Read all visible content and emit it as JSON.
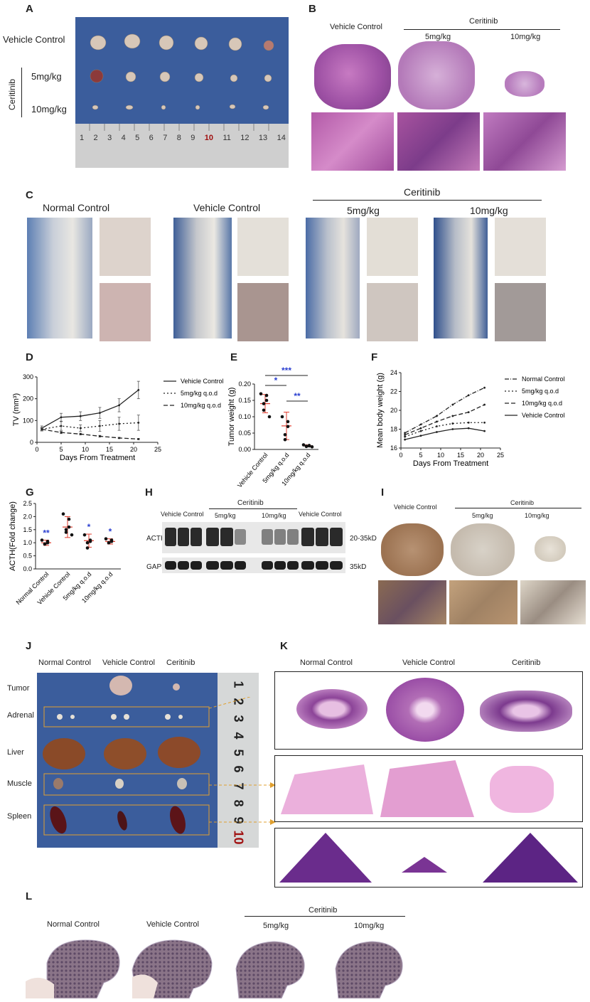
{
  "panels": {
    "A": {
      "label": "A",
      "rows": [
        "Vehicle Control",
        "5mg/kg",
        "10mg/kg"
      ],
      "group": "Ceritinib",
      "ruler": [
        "1",
        "2",
        "3",
        "4",
        "5",
        "6",
        "7",
        "8",
        "9",
        "10",
        "11",
        "12",
        "13",
        "14"
      ]
    },
    "B": {
      "label": "B",
      "vehicle": "Vehicle Control",
      "group": "Ceritinib",
      "doses": [
        "5mg/kg",
        "10mg/kg"
      ]
    },
    "C": {
      "label": "C",
      "titles": [
        "Normal Control",
        "Vehicle Control",
        "5mg/kg",
        "10mg/kg"
      ],
      "group": "Ceritinib"
    },
    "D": {
      "label": "D",
      "ylabel": "TV (mm³)",
      "xlabel": "Days From Treatment",
      "legend": [
        "Vehicle Control",
        "5mg/kg q.o.d",
        "10mg/kg q.o.d"
      ]
    },
    "E": {
      "label": "E",
      "ylabel": "Tumor weight (g)",
      "categories": [
        "Vehicle Control",
        "5mg/kg q.o.d",
        "10mg/kg q.o.d"
      ],
      "sig": [
        "***",
        "*",
        "**"
      ]
    },
    "F": {
      "label": "F",
      "ylabel": "Mean body weight (g)",
      "xlabel": "Days From Treatment",
      "legend": [
        "Normal Control",
        "5mg/kg q.o.d",
        "10mg/kg q.o.d",
        "Vehicle Control"
      ]
    },
    "G": {
      "label": "G",
      "ylabel": "ACTH(Fold change)",
      "categories": [
        "Normal Control",
        "Vehicle Control",
        "5mg/kg q.o.d",
        "10mg/kg q.o.d"
      ],
      "sig": [
        "**",
        "",
        "*",
        "*"
      ]
    },
    "H": {
      "label": "H",
      "group": "Ceritinib",
      "lanes": [
        "Vehicle Control",
        "5mg/kg",
        "10mg/kg",
        "Vehicle Control"
      ],
      "rows": [
        "ACTH",
        "GAPDH"
      ],
      "sizes": [
        "20-35kD",
        "35kD"
      ]
    },
    "I": {
      "label": "I",
      "vehicle": "Vehicle Control",
      "group": "Ceritinib",
      "doses": [
        "5mg/kg",
        "10mg/kg"
      ]
    },
    "J": {
      "label": "J",
      "cols": [
        "Normal Control",
        "Vehicle Control",
        "Ceritinib"
      ],
      "rows": [
        "Tumor",
        "Adrenal",
        "Liver",
        "Muscle",
        "Spleen"
      ],
      "ruler": [
        "1",
        "2",
        "3",
        "4",
        "5",
        "6",
        "7",
        "8",
        "9",
        "10"
      ]
    },
    "K": {
      "label": "K",
      "cols": [
        "Normal Control",
        "Vehicle Control",
        "Ceritinib"
      ]
    },
    "L": {
      "label": "L",
      "titles": [
        "Normal Control",
        "Vehicle Control",
        "5mg/kg",
        "10mg/kg"
      ],
      "group": "Ceritinib"
    }
  },
  "chart_data": [
    {
      "panel": "D",
      "type": "line",
      "x": [
        1,
        5,
        9,
        13,
        17,
        21
      ],
      "series": [
        {
          "name": "Vehicle Control",
          "values": [
            65,
            115,
            120,
            135,
            170,
            240
          ],
          "err": [
            10,
            18,
            20,
            25,
            30,
            40
          ]
        },
        {
          "name": "5mg/kg q.o.d",
          "values": [
            60,
            75,
            65,
            75,
            85,
            90
          ],
          "err": [
            8,
            20,
            15,
            25,
            30,
            35
          ]
        },
        {
          "name": "10mg/kg q.o.d",
          "values": [
            60,
            45,
            38,
            28,
            20,
            15
          ],
          "err": [
            5,
            5,
            4,
            4,
            3,
            3
          ]
        }
      ],
      "xlim": [
        0,
        25
      ],
      "ylim": [
        0,
        300
      ],
      "xticks": [
        0,
        5,
        10,
        15,
        20,
        25
      ],
      "yticks": [
        0,
        100,
        200,
        300
      ],
      "xlabel": "Days From Treatment",
      "ylabel": "TV (mm³)"
    },
    {
      "panel": "E",
      "type": "scatter",
      "categories": [
        "Vehicle Control",
        "5mg/kg q.o.d",
        "10mg/kg q.o.d"
      ],
      "means": [
        0.14,
        0.072,
        0.011
      ],
      "sd": [
        0.028,
        0.042,
        0.003
      ],
      "points": [
        [
          0.17,
          0.165,
          0.15,
          0.14,
          0.12,
          0.1
        ],
        [
          0.1,
          0.085,
          0.07,
          0.045,
          0.03
        ],
        [
          0.014,
          0.012,
          0.011,
          0.01,
          0.009,
          0.008
        ]
      ],
      "ylim": [
        0,
        0.2
      ],
      "yticks": [
        0.0,
        0.05,
        0.1,
        0.15,
        0.2
      ],
      "ylabel": "Tumor weight (g)"
    },
    {
      "panel": "F",
      "type": "line",
      "x": [
        1,
        5,
        9,
        13,
        17,
        21
      ],
      "series": [
        {
          "name": "Normal Control",
          "values": [
            17.6,
            18.5,
            19.4,
            20.6,
            21.6,
            22.4
          ]
        },
        {
          "name": "5mg/kg q.o.d",
          "values": [
            17.2,
            17.8,
            18.3,
            18.6,
            18.7,
            18.7
          ]
        },
        {
          "name": "10mg/kg q.o.d",
          "values": [
            17.4,
            18.1,
            18.8,
            19.4,
            19.8,
            20.6
          ]
        },
        {
          "name": "Vehicle Control",
          "values": [
            16.9,
            17.3,
            17.7,
            18.0,
            18.1,
            17.8
          ]
        }
      ],
      "xlim": [
        0,
        25
      ],
      "ylim": [
        16,
        24
      ],
      "xticks": [
        0,
        5,
        10,
        15,
        20,
        25
      ],
      "yticks": [
        16,
        18,
        20,
        22,
        24
      ],
      "xlabel": "Days From Treatment",
      "ylabel": "Mean body weight (g)"
    },
    {
      "panel": "G",
      "type": "scatter",
      "categories": [
        "Normal Control",
        "Vehicle Control",
        "5mg/kg q.o.d",
        "10mg/kg q.o.d"
      ],
      "means": [
        1.0,
        1.6,
        1.08,
        1.05
      ],
      "sd": [
        0.1,
        0.4,
        0.25,
        0.1
      ],
      "points": [
        [
          1.1,
          1.05,
          1.0,
          0.95,
          0.95
        ],
        [
          2.1,
          1.9,
          1.6,
          1.5,
          1.4,
          1.3
        ],
        [
          1.3,
          1.1,
          1.05,
          1.0,
          0.8
        ],
        [
          1.15,
          1.1,
          1.05,
          1.0,
          1.0
        ]
      ],
      "ylim": [
        0,
        2.5
      ],
      "yticks": [
        0.0,
        0.5,
        1.0,
        1.5,
        2.0,
        2.5
      ],
      "ylabel": "ACTH(Fold change)"
    }
  ],
  "colors": {
    "photo_blue": "#3b5d9c",
    "he_purple": "#9a4fa2",
    "he_pink": "#e6a7d4",
    "ihc_brown": "#a67c52",
    "sig_blue": "#2b3fd0",
    "err_red": "#e03b2c"
  }
}
